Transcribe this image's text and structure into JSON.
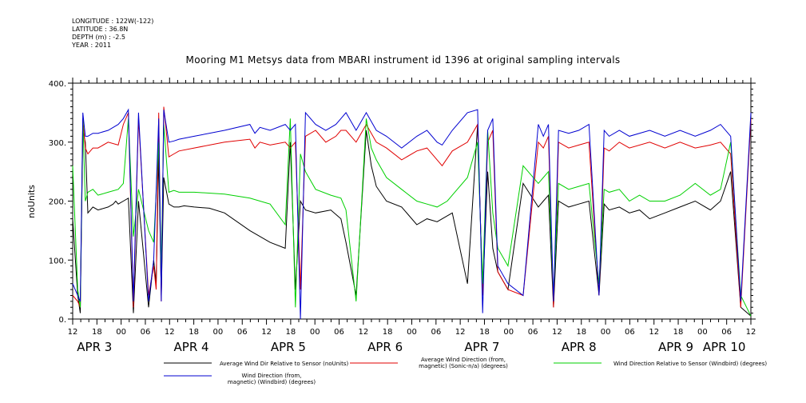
{
  "header": {
    "lines": [
      "LONGITUDE : 122W(-122)",
      "LATITUDE : 36.8N",
      "DEPTH (m) : -2.5",
      "YEAR : 2011"
    ],
    "title": "Mooring M1 Metsys data from MBARI instrument id 1396 at original sampling intervals"
  },
  "chart_data": {
    "type": "line",
    "title": "Mooring M1 Metsys data from MBARI instrument id 1396 at original sampling intervals",
    "xlabel": "",
    "ylabel": "noUnits",
    "ylim": [
      0,
      400
    ],
    "yticks": [
      0,
      100,
      200,
      300,
      400
    ],
    "ytick_labels": [
      "0.",
      "100.",
      "200.",
      "300.",
      "400."
    ],
    "xlim_hours_labels": "APR 3 12:00 to APR 10 12:00",
    "xtick_labels": [
      "12",
      "18",
      "00",
      "06",
      "12",
      "18",
      "00",
      "06",
      "12",
      "18",
      "00",
      "06",
      "12",
      "18",
      "00",
      "06",
      "12",
      "18",
      "00",
      "06",
      "12",
      "18",
      "00",
      "06",
      "12",
      "18",
      "00",
      "06",
      "12"
    ],
    "day_labels": [
      "APR 3",
      "APR 4",
      "APR 5",
      "APR 6",
      "APR 7",
      "APR 8",
      "APR 9",
      "APR 10"
    ],
    "legend": [
      {
        "label": "Average Wind Dir Relative to Sensor (noUnits)",
        "color": "#000000"
      },
      {
        "label": "Average Wind Direction (from, magnetic) (Sonic-n/a) (degrees)",
        "color": "#e00000"
      },
      {
        "label": "Wind Direction Relative to Sensor (Windbird) (degrees)",
        "color": "#00d000"
      },
      {
        "label": "Wind Direction (from, magnetic) (Windbird) (degrees)",
        "color": "#0000d0"
      }
    ],
    "series": [
      {
        "name": "Average Wind Dir Relative to Sensor (noUnits)",
        "color": "#000000",
        "x": [
          0,
          2,
          3,
          4,
          5,
          6,
          8,
          10,
          14,
          16,
          17,
          18,
          20,
          22,
          24,
          26,
          30,
          32,
          33,
          34,
          35,
          36,
          38,
          40,
          42,
          44,
          48,
          54,
          60,
          70,
          78,
          84,
          86,
          88,
          90,
          92,
          96,
          102,
          106,
          108,
          112,
          116,
          118,
          120,
          124,
          130,
          136,
          140,
          144,
          148,
          150,
          156,
          160,
          162,
          164,
          166,
          168,
          172,
          178,
          184,
          186,
          188,
          190,
          192,
          196,
          200,
          204,
          208,
          210,
          212,
          216,
          220,
          224,
          228,
          234,
          240,
          246,
          252,
          256,
          260,
          264,
          268
        ],
        "y": [
          170,
          40,
          10,
          320,
          300,
          180,
          190,
          185,
          190,
          195,
          200,
          195,
          200,
          205,
          10,
          200,
          20,
          100,
          60,
          280,
          40,
          240,
          195,
          190,
          190,
          192,
          190,
          188,
          180,
          150,
          130,
          120,
          300,
          50,
          200,
          185,
          180,
          185,
          170,
          130,
          40,
          320,
          260,
          225,
          200,
          190,
          160,
          170,
          165,
          175,
          180,
          60,
          330,
          40,
          250,
          120,
          80,
          50,
          230,
          190,
          200,
          210,
          20,
          200,
          190,
          195,
          200,
          40,
          195,
          185,
          190,
          180,
          185,
          170,
          180,
          190,
          200,
          185,
          200,
          250,
          20,
          5
        ]
      },
      {
        "name": "Average Wind Direction (from, magnetic) (Sonic-n/a) (degrees)",
        "color": "#e00000",
        "x": [
          0,
          2,
          3,
          4,
          5,
          6,
          8,
          10,
          14,
          18,
          20,
          22,
          24,
          26,
          30,
          32,
          33,
          34,
          35,
          36,
          38,
          40,
          42,
          48,
          60,
          70,
          72,
          74,
          78,
          84,
          86,
          88,
          90,
          92,
          96,
          100,
          104,
          106,
          108,
          112,
          116,
          120,
          124,
          130,
          136,
          140,
          144,
          146,
          150,
          156,
          160,
          162,
          164,
          166,
          168,
          172,
          178,
          184,
          186,
          188,
          190,
          192,
          196,
          200,
          204,
          208,
          210,
          212,
          216,
          220,
          228,
          234,
          240,
          246,
          252,
          256,
          260,
          264,
          268
        ],
        "y": [
          40,
          30,
          20,
          340,
          290,
          280,
          290,
          290,
          300,
          295,
          330,
          350,
          20,
          340,
          40,
          90,
          50,
          350,
          30,
          360,
          275,
          280,
          285,
          290,
          300,
          305,
          290,
          300,
          295,
          300,
          290,
          300,
          50,
          310,
          320,
          300,
          310,
          320,
          320,
          300,
          330,
          300,
          290,
          270,
          285,
          290,
          270,
          260,
          285,
          300,
          330,
          40,
          300,
          320,
          80,
          50,
          40,
          300,
          290,
          310,
          20,
          300,
          290,
          295,
          300,
          40,
          290,
          285,
          300,
          290,
          300,
          290,
          300,
          290,
          295,
          300,
          280,
          20,
          340
        ]
      },
      {
        "name": "Wind Direction Relative to Sensor (Windbird) (degrees)",
        "color": "#00d000",
        "x": [
          0,
          2,
          3,
          4,
          5,
          6,
          8,
          10,
          14,
          18,
          20,
          22,
          24,
          26,
          30,
          32,
          34,
          35,
          36,
          38,
          40,
          42,
          48,
          60,
          70,
          78,
          84,
          86,
          88,
          90,
          92,
          96,
          102,
          106,
          108,
          112,
          116,
          118,
          120,
          124,
          130,
          136,
          140,
          144,
          148,
          150,
          156,
          160,
          162,
          164,
          166,
          168,
          172,
          178,
          184,
          186,
          188,
          190,
          192,
          196,
          200,
          204,
          208,
          210,
          212,
          216,
          220,
          224,
          228,
          234,
          240,
          246,
          252,
          256,
          260,
          264,
          268
        ],
        "y": [
          260,
          50,
          20,
          340,
          200,
          215,
          220,
          210,
          215,
          220,
          230,
          340,
          140,
          220,
          150,
          130,
          300,
          80,
          330,
          215,
          218,
          215,
          215,
          212,
          205,
          195,
          160,
          340,
          20,
          280,
          250,
          220,
          210,
          205,
          185,
          30,
          340,
          290,
          270,
          240,
          220,
          200,
          195,
          190,
          200,
          210,
          240,
          300,
          60,
          320,
          180,
          120,
          90,
          260,
          230,
          240,
          250,
          40,
          230,
          220,
          225,
          230,
          60,
          220,
          215,
          220,
          200,
          210,
          200,
          200,
          210,
          230,
          210,
          220,
          300,
          40,
          5
        ]
      },
      {
        "name": "Wind Direction (from, magnetic) (Windbird) (degrees)",
        "color": "#0000d0",
        "x": [
          0,
          2,
          3,
          4,
          5,
          6,
          8,
          10,
          14,
          18,
          20,
          22,
          24,
          26,
          30,
          32,
          34,
          35,
          36,
          38,
          40,
          42,
          48,
          60,
          70,
          72,
          74,
          78,
          84,
          86,
          88,
          90,
          92,
          96,
          100,
          104,
          106,
          108,
          112,
          116,
          120,
          124,
          130,
          136,
          140,
          144,
          146,
          150,
          156,
          160,
          162,
          164,
          166,
          168,
          172,
          178,
          184,
          186,
          188,
          190,
          192,
          196,
          200,
          204,
          208,
          210,
          212,
          216,
          220,
          228,
          234,
          240,
          246,
          252,
          256,
          260,
          264,
          268
        ],
        "y": [
          60,
          40,
          30,
          350,
          310,
          310,
          315,
          315,
          320,
          330,
          340,
          355,
          30,
          350,
          30,
          100,
          340,
          30,
          355,
          300,
          302,
          305,
          310,
          320,
          330,
          315,
          325,
          320,
          330,
          320,
          330,
          0,
          350,
          330,
          320,
          330,
          340,
          350,
          320,
          350,
          320,
          310,
          290,
          310,
          320,
          300,
          295,
          320,
          350,
          355,
          10,
          320,
          340,
          90,
          60,
          40,
          330,
          310,
          330,
          30,
          320,
          315,
          320,
          330,
          40,
          320,
          310,
          320,
          310,
          320,
          310,
          320,
          310,
          320,
          330,
          310,
          30,
          350
        ]
      }
    ]
  }
}
